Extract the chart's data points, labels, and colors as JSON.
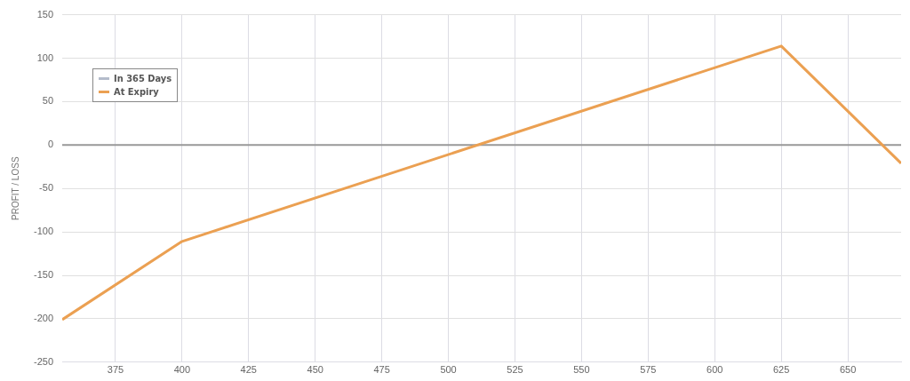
{
  "chart_data": {
    "type": "line",
    "ylabel": "PROFIT / LOSS",
    "series": [
      {
        "name": "In 365 Days",
        "color": "#b4bccb"
      },
      {
        "name": "At Expiry",
        "color": "#eba052",
        "x": [
          355,
          400,
          625,
          670
        ],
        "values": [
          -201,
          -111,
          114,
          -21
        ]
      }
    ],
    "xlim": [
      355,
      670
    ],
    "xticks": [
      375,
      400,
      425,
      450,
      475,
      500,
      525,
      550,
      575,
      600,
      625,
      650
    ],
    "ylim": [
      -250,
      150
    ],
    "yticks": [
      -250,
      -200,
      -150,
      -100,
      -50,
      0,
      50,
      100,
      150
    ],
    "ref_lines": [
      {
        "axis": "y",
        "value": 0,
        "color": "#999999"
      }
    ],
    "grid": true,
    "legend": "top left",
    "marker": "none",
    "line_style": "solid"
  }
}
